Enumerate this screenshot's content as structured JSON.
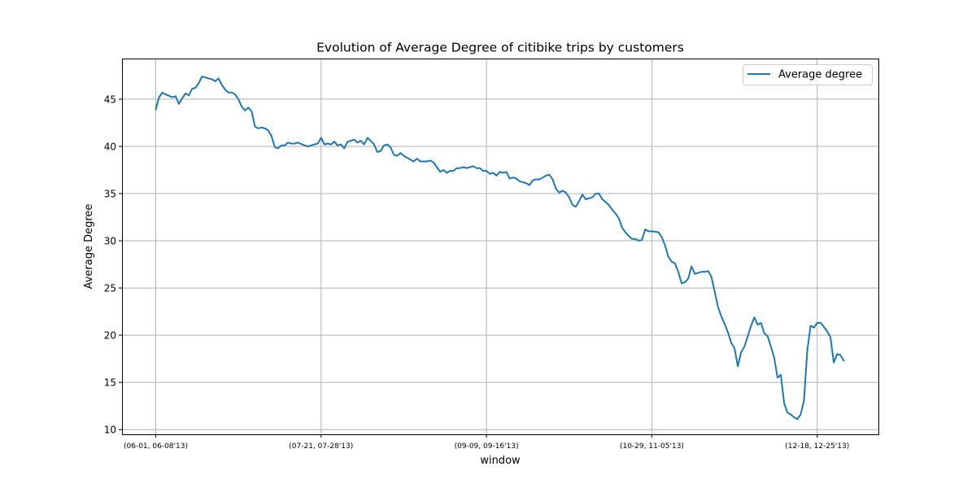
{
  "chart_data": {
    "type": "line",
    "title": "Evolution of Average Degree of citibike trips by customers",
    "xlabel": "window",
    "ylabel": "Average Degree",
    "grid": true,
    "legend_position": "top-right",
    "x_tick_labels": [
      "(06-01, 06-08'13)",
      "(07-21, 07-28'13)",
      "(09-09, 09-16'13)",
      "(10-29, 11-05'13)",
      "(12-18, 12-25'13)"
    ],
    "x_tick_positions": [
      0,
      50,
      100,
      150,
      200
    ],
    "y_ticks": [
      10,
      15,
      20,
      25,
      30,
      35,
      40,
      45
    ],
    "xlim": [
      -10.2,
      218.5
    ],
    "ylim": [
      9.5,
      49.3
    ],
    "series": [
      {
        "name": "Average degree",
        "color": "#1f77b4",
        "points": [
          [
            0,
            43.9
          ],
          [
            1,
            45.2
          ],
          [
            2,
            45.7
          ],
          [
            3,
            45.5
          ],
          [
            5,
            45.2
          ],
          [
            6,
            45.3
          ],
          [
            7,
            44.5
          ],
          [
            8,
            45.1
          ],
          [
            9,
            45.6
          ],
          [
            10,
            45.4
          ],
          [
            11,
            46.1
          ],
          [
            12,
            46.2
          ],
          [
            13,
            46.7
          ],
          [
            14,
            47.4
          ],
          [
            16,
            47.2
          ],
          [
            17,
            47.1
          ],
          [
            18,
            46.9
          ],
          [
            19,
            47.2
          ],
          [
            20,
            46.5
          ],
          [
            21,
            46.0
          ],
          [
            22,
            45.7
          ],
          [
            23,
            45.7
          ],
          [
            24,
            45.5
          ],
          [
            25,
            45.0
          ],
          [
            26,
            44.2
          ],
          [
            27,
            43.8
          ],
          [
            28,
            44.1
          ],
          [
            29,
            43.7
          ],
          [
            30,
            42.1
          ],
          [
            31,
            41.9
          ],
          [
            32,
            42.0
          ],
          [
            33,
            41.9
          ],
          [
            34,
            41.7
          ],
          [
            35,
            41.1
          ],
          [
            36,
            39.9
          ],
          [
            37,
            39.8
          ],
          [
            38,
            40.1
          ],
          [
            39,
            40.1
          ],
          [
            40,
            40.4
          ],
          [
            41,
            40.3
          ],
          [
            42,
            40.3
          ],
          [
            43,
            40.4
          ],
          [
            45,
            40.1
          ],
          [
            46,
            40.0
          ],
          [
            47,
            40.1
          ],
          [
            48,
            40.2
          ],
          [
            49,
            40.3
          ],
          [
            50,
            40.9
          ],
          [
            51,
            40.2
          ],
          [
            52,
            40.3
          ],
          [
            53,
            40.2
          ],
          [
            54,
            40.5
          ],
          [
            55,
            40.1
          ],
          [
            56,
            40.2
          ],
          [
            57,
            39.8
          ],
          [
            58,
            40.5
          ],
          [
            59,
            40.6
          ],
          [
            60,
            40.7
          ],
          [
            61,
            40.4
          ],
          [
            62,
            40.6
          ],
          [
            63,
            40.2
          ],
          [
            64,
            40.9
          ],
          [
            65,
            40.6
          ],
          [
            66,
            40.2
          ],
          [
            67,
            39.4
          ],
          [
            68,
            39.5
          ],
          [
            69,
            40.1
          ],
          [
            70,
            40.2
          ],
          [
            71,
            39.9
          ],
          [
            72,
            39.1
          ],
          [
            73,
            39.0
          ],
          [
            74,
            39.3
          ],
          [
            75,
            39.0
          ],
          [
            76,
            38.8
          ],
          [
            77,
            38.6
          ],
          [
            78,
            38.4
          ],
          [
            79,
            38.7
          ],
          [
            80,
            38.4
          ],
          [
            81,
            38.4
          ],
          [
            82,
            38.4
          ],
          [
            83,
            38.5
          ],
          [
            84,
            38.3
          ],
          [
            85,
            37.8
          ],
          [
            86,
            37.3
          ],
          [
            87,
            37.5
          ],
          [
            88,
            37.2
          ],
          [
            89,
            37.4
          ],
          [
            90,
            37.4
          ],
          [
            91,
            37.7
          ],
          [
            92,
            37.7
          ],
          [
            93,
            37.8
          ],
          [
            94,
            37.7
          ],
          [
            95,
            37.8
          ],
          [
            96,
            37.9
          ],
          [
            97,
            37.7
          ],
          [
            98,
            37.7
          ],
          [
            99,
            37.4
          ],
          [
            100,
            37.4
          ],
          [
            101,
            37.1
          ],
          [
            102,
            37.2
          ],
          [
            103,
            36.9
          ],
          [
            104,
            37.3
          ],
          [
            105,
            37.2
          ],
          [
            106,
            37.3
          ],
          [
            107,
            36.6
          ],
          [
            108,
            36.7
          ],
          [
            109,
            36.6
          ],
          [
            110,
            36.3
          ],
          [
            111,
            36.2
          ],
          [
            112,
            36.1
          ],
          [
            113,
            35.9
          ],
          [
            114,
            36.4
          ],
          [
            115,
            36.5
          ],
          [
            116,
            36.5
          ],
          [
            117,
            36.7
          ],
          [
            118,
            36.9
          ],
          [
            119,
            37.0
          ],
          [
            120,
            36.5
          ],
          [
            121,
            35.5
          ],
          [
            122,
            35.1
          ],
          [
            123,
            35.3
          ],
          [
            124,
            35.1
          ],
          [
            125,
            34.6
          ],
          [
            126,
            33.8
          ],
          [
            127,
            33.6
          ],
          [
            128,
            34.2
          ],
          [
            129,
            34.9
          ],
          [
            130,
            34.4
          ],
          [
            131,
            34.5
          ],
          [
            132,
            34.6
          ],
          [
            133,
            35.0
          ],
          [
            134,
            35.0
          ],
          [
            135,
            34.4
          ],
          [
            136,
            34.1
          ],
          [
            137,
            33.8
          ],
          [
            138,
            33.3
          ],
          [
            139,
            32.9
          ],
          [
            140,
            32.4
          ],
          [
            141,
            31.4
          ],
          [
            142,
            30.9
          ],
          [
            143,
            30.5
          ],
          [
            144,
            30.2
          ],
          [
            145,
            30.2
          ],
          [
            146,
            30.0
          ],
          [
            147,
            30.1
          ],
          [
            148,
            31.2
          ],
          [
            149,
            31.0
          ],
          [
            150,
            31.0
          ],
          [
            152,
            30.9
          ],
          [
            153,
            30.4
          ],
          [
            154,
            29.5
          ],
          [
            155,
            28.3
          ],
          [
            156,
            27.8
          ],
          [
            157,
            27.6
          ],
          [
            158,
            26.7
          ],
          [
            159,
            25.5
          ],
          [
            160,
            25.6
          ],
          [
            161,
            26.0
          ],
          [
            162,
            27.3
          ],
          [
            163,
            26.5
          ],
          [
            164,
            26.6
          ],
          [
            165,
            26.7
          ],
          [
            166,
            26.7
          ],
          [
            167,
            26.8
          ],
          [
            168,
            26.2
          ],
          [
            169,
            24.6
          ],
          [
            170,
            23.0
          ],
          [
            171,
            22.0
          ],
          [
            172,
            21.2
          ],
          [
            173,
            20.3
          ],
          [
            174,
            19.2
          ],
          [
            175,
            18.6
          ],
          [
            176,
            16.7
          ],
          [
            177,
            18.2
          ],
          [
            178,
            18.8
          ],
          [
            179,
            19.9
          ],
          [
            180,
            21.0
          ],
          [
            181,
            21.9
          ],
          [
            182,
            21.1
          ],
          [
            183,
            21.3
          ],
          [
            184,
            20.2
          ],
          [
            185,
            19.9
          ],
          [
            186,
            18.8
          ],
          [
            187,
            17.6
          ],
          [
            188,
            15.5
          ],
          [
            189,
            15.8
          ],
          [
            190,
            12.8
          ],
          [
            191,
            11.8
          ],
          [
            192,
            11.6
          ],
          [
            193,
            11.3
          ],
          [
            194,
            11.1
          ],
          [
            195,
            11.6
          ],
          [
            196,
            13.1
          ],
          [
            197,
            18.4
          ],
          [
            198,
            21.0
          ],
          [
            199,
            20.8
          ],
          [
            200,
            21.3
          ],
          [
            201,
            21.3
          ],
          [
            202,
            20.9
          ],
          [
            203,
            20.4
          ],
          [
            204,
            19.8
          ],
          [
            205,
            17.1
          ],
          [
            206,
            18.0
          ],
          [
            207,
            17.9
          ],
          [
            208,
            17.3
          ]
        ]
      }
    ]
  }
}
